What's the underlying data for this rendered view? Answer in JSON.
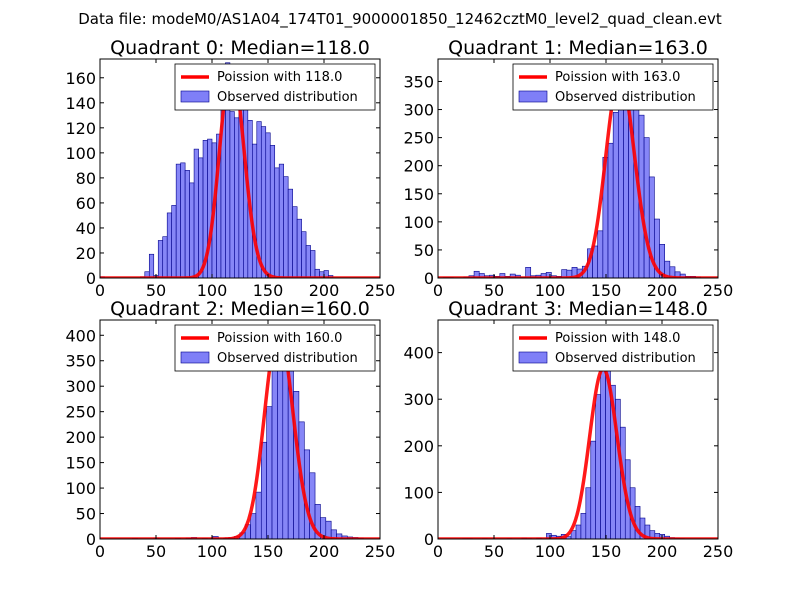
{
  "figure": {
    "suptitle": "Data file: modeM0/AS1A04_174T01_9000001850_12462cztM0_level2_quad_clean.evt"
  },
  "colors": {
    "bar_fill": "#7f7ff7",
    "bar_edge": "#00008b",
    "line": "#ff0000",
    "axes": "#000000"
  },
  "chart_data": [
    {
      "type": "bar",
      "title": "Quadrant 0: Median=118.0",
      "xlim": [
        0,
        250
      ],
      "ylim": [
        0,
        175
      ],
      "xticks": [
        "0",
        "50",
        "100",
        "150",
        "200",
        "250"
      ],
      "yticks": [
        "0",
        "20",
        "40",
        "60",
        "80",
        "100",
        "120",
        "140",
        "160"
      ],
      "legend": {
        "location": "upper right",
        "line_label": "Poission with 118.0",
        "bar_label": "Observed distribution"
      },
      "bin_width": 4,
      "bins_start": [
        0,
        4,
        8,
        12,
        16,
        20,
        24,
        28,
        32,
        36,
        40,
        44,
        48,
        52,
        56,
        60,
        64,
        68,
        72,
        76,
        80,
        84,
        88,
        92,
        96,
        100,
        104,
        108,
        112,
        116,
        120,
        124,
        128,
        132,
        136,
        140,
        144,
        148,
        152,
        156,
        160,
        164,
        168,
        172,
        176,
        180,
        184,
        188,
        192,
        196,
        200,
        204
      ],
      "counts": [
        1,
        0,
        0,
        0,
        0,
        0,
        0,
        0,
        0,
        1,
        5,
        19,
        2,
        30,
        33,
        52,
        58,
        91,
        92,
        86,
        76,
        103,
        96,
        110,
        111,
        108,
        115,
        155,
        172,
        133,
        128,
        141,
        151,
        126,
        107,
        125,
        121,
        116,
        106,
        88,
        91,
        81,
        71,
        57,
        47,
        37,
        26,
        22,
        7,
        5,
        6,
        2
      ],
      "poisson_lambda": 118,
      "poisson_scale": 4620
    },
    {
      "type": "bar",
      "title": "Quadrant 1: Median=163.0",
      "xlim": [
        0,
        250
      ],
      "ylim": [
        0,
        390
      ],
      "xticks": [
        "0",
        "50",
        "100",
        "150",
        "200",
        "250"
      ],
      "yticks": [
        "0",
        "50",
        "100",
        "150",
        "200",
        "250",
        "300",
        "350"
      ],
      "legend": {
        "location": "upper right",
        "line_label": "Poission with 163.0",
        "bar_label": "Observed distribution"
      },
      "bin_width": 4.6,
      "bins_start": [
        0,
        4.6,
        9.2,
        13.8,
        18.4,
        23,
        27.6,
        32.2,
        36.8,
        41.4,
        46,
        50.6,
        55.2,
        59.8,
        64.4,
        69,
        73.6,
        78.2,
        82.8,
        87.4,
        92,
        96.6,
        101.2,
        105.8,
        110.4,
        115,
        119.6,
        124.2,
        128.8,
        133.4,
        138,
        142.6,
        147.2,
        151.8,
        156.4,
        161,
        165.6,
        170.2,
        174.8,
        179.4,
        184,
        188.6,
        193.2,
        197.8,
        202.4,
        207,
        211.6,
        216.2,
        220.8,
        225.4,
        230
      ],
      "counts": [
        0,
        1,
        1,
        0,
        0,
        2,
        4,
        12,
        8,
        4,
        5,
        3,
        8,
        3,
        7,
        5,
        1,
        19,
        4,
        5,
        8,
        10,
        4,
        3,
        15,
        14,
        19,
        16,
        21,
        52,
        57,
        84,
        215,
        240,
        295,
        300,
        350,
        375,
        305,
        290,
        250,
        180,
        105,
        60,
        30,
        20,
        11,
        7,
        3,
        3,
        2
      ],
      "poisson_lambda": 163,
      "poisson_scale": 11550
    },
    {
      "type": "bar",
      "title": "Quadrant 2: Median=160.0",
      "xlim": [
        0,
        250
      ],
      "ylim": [
        0,
        430
      ],
      "xticks": [
        "0",
        "50",
        "100",
        "150",
        "200",
        "250"
      ],
      "yticks": [
        "0",
        "50",
        "100",
        "150",
        "200",
        "250",
        "300",
        "350",
        "400"
      ],
      "legend": {
        "location": "upper right",
        "line_label": "Poission with 160.0",
        "bar_label": "Observed distribution"
      },
      "bin_width": 4.8,
      "bins_start": [
        0,
        4.8,
        9.6,
        14.4,
        19.2,
        24,
        28.8,
        33.6,
        38.4,
        43.2,
        48,
        52.8,
        57.6,
        62.4,
        67.2,
        72,
        76.8,
        81.6,
        86.4,
        91.2,
        96,
        100.8,
        105.6,
        110.4,
        115.2,
        120,
        124.8,
        129.6,
        134.4,
        139.2,
        144,
        148.8,
        153.6,
        158.4,
        163.2,
        168,
        172.8,
        177.6,
        182.4,
        187.2,
        192,
        196.8,
        201.6,
        206.4,
        211.2,
        216,
        220.8,
        225.6,
        230.4,
        235.2
      ],
      "counts": [
        0,
        0,
        0,
        0,
        0,
        0,
        1,
        0,
        0,
        0,
        2,
        0,
        0,
        0,
        1,
        0,
        2,
        3,
        0,
        1,
        0,
        5,
        0,
        2,
        3,
        5,
        12,
        28,
        50,
        92,
        190,
        260,
        340,
        415,
        390,
        330,
        290,
        230,
        175,
        130,
        68,
        42,
        35,
        18,
        10,
        6,
        4,
        3,
        2,
        0
      ],
      "poisson_lambda": 160,
      "poisson_scale": 13000
    },
    {
      "type": "bar",
      "title": "Quadrant 3: Median=148.0",
      "xlim": [
        0,
        250
      ],
      "ylim": [
        0,
        470
      ],
      "xticks": [
        "0",
        "50",
        "100",
        "150",
        "200",
        "250"
      ],
      "yticks": [
        "0",
        "100",
        "200",
        "300",
        "400"
      ],
      "legend": {
        "location": "upper right",
        "line_label": "Poission with 148.0",
        "bar_label": "Observed distribution"
      },
      "bin_width": 4.4,
      "bins_start": [
        0,
        4.4,
        8.8,
        13.2,
        17.6,
        22,
        26.4,
        30.8,
        35.2,
        39.6,
        44,
        48.4,
        52.8,
        57.2,
        61.6,
        66,
        70.4,
        74.8,
        79.2,
        83.6,
        88,
        92.4,
        96.8,
        101.2,
        105.6,
        110,
        114.4,
        118.8,
        123.2,
        127.6,
        132,
        136.4,
        140.8,
        145.2,
        149.6,
        154,
        158.4,
        162.8,
        167.2,
        171.6,
        176,
        180.4,
        184.8,
        189.2,
        193.6,
        198,
        202.4,
        206.8,
        211.2,
        215.6
      ],
      "counts": [
        0,
        0,
        0,
        0,
        0,
        1,
        1,
        0,
        0,
        1,
        0,
        0,
        0,
        0,
        1,
        0,
        0,
        2,
        1,
        0,
        2,
        0,
        12,
        8,
        6,
        10,
        5,
        18,
        30,
        55,
        110,
        210,
        310,
        420,
        390,
        330,
        300,
        240,
        170,
        110,
        70,
        45,
        30,
        18,
        12,
        10,
        6,
        3,
        2,
        1
      ],
      "poisson_lambda": 148,
      "poisson_scale": 11150
    }
  ]
}
